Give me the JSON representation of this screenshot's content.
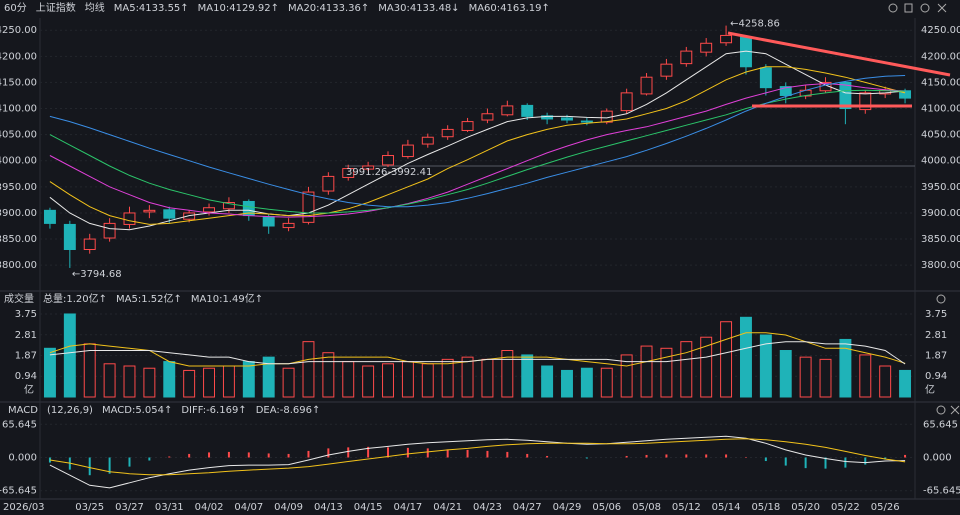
{
  "chart_data": [
    {
      "type": "candlestick",
      "period": "60分",
      "title": "上证指数",
      "ma_label": "均线",
      "up_color": "#ff4a4a",
      "down_color": "#1fb3b8",
      "ylim": [
        3762,
        4260
      ],
      "yticks": [
        {
          "value": 3800,
          "label": "3800.00"
        },
        {
          "value": 3850,
          "label": "3850.00"
        },
        {
          "value": 3900,
          "label": "3900.00"
        },
        {
          "value": 3950,
          "label": "3950.00"
        },
        {
          "value": 4000,
          "label": "4000.00"
        },
        {
          "value": 4050,
          "label": "4050.00"
        },
        {
          "value": 4100,
          "label": "4100.00"
        },
        {
          "value": 4150,
          "label": "4150.00"
        },
        {
          "value": 4200,
          "label": "4200.00"
        },
        {
          "value": 4250,
          "label": "4250.00"
        }
      ],
      "ohlc": {
        "open": [
          3905,
          3878,
          3830,
          3852,
          3878,
          3902,
          3906,
          3888,
          3902,
          3908,
          3922,
          3893,
          3872,
          3882,
          3942,
          3968,
          3984,
          3992,
          4008,
          4032,
          4046,
          4058,
          4078,
          4088,
          4106,
          4086,
          4082,
          4076,
          4074,
          4096,
          4128,
          4162,
          4186,
          4208,
          4226,
          4238,
          4178,
          4142,
          4124,
          4134,
          4150,
          4098,
          4128,
          4134
        ],
        "high": [
          3910,
          3885,
          3860,
          3890,
          3912,
          3915,
          3912,
          3905,
          3918,
          3930,
          3926,
          3898,
          3890,
          3950,
          3978,
          3992.41,
          3998,
          4018,
          4040,
          4052,
          4068,
          4082,
          4100,
          4115,
          4110,
          4092,
          4088,
          4082,
          4100,
          4138,
          4168,
          4195,
          4218,
          4235,
          4258.86,
          4240,
          4185,
          4150,
          4145,
          4160,
          4152,
          4135,
          4142,
          4138
        ],
        "low": [
          3870,
          3794.68,
          3822,
          3845,
          3870,
          3890,
          3880,
          3882,
          3895,
          3900,
          3885,
          3860,
          3865,
          3878,
          3935,
          3962,
          3980,
          3988,
          4004,
          4025,
          4040,
          4055,
          4072,
          4085,
          4078,
          4070,
          4072,
          4068,
          4070,
          4090,
          4125,
          4155,
          4180,
          4200,
          4220,
          4165,
          4125,
          4110,
          4118,
          4130,
          4070,
          4090,
          4120,
          4110
        ],
        "close": [
          3880,
          3830,
          3850,
          3880,
          3900,
          3905,
          3890,
          3900,
          3910,
          3920,
          3895,
          3875,
          3880,
          3940,
          3970,
          3985,
          3990,
          4010,
          4030,
          4045,
          4060,
          4075,
          4090,
          4105,
          4085,
          4080,
          4078,
          4075,
          4095,
          4130,
          4160,
          4185,
          4210,
          4225,
          4240,
          4180,
          4140,
          4125,
          4135,
          4150,
          4100,
          4130,
          4135,
          4120
        ]
      },
      "series": [
        {
          "name": "MA5:4133.55↑",
          "color": "#e8e8e8",
          "values": [
            3930,
            3900,
            3880,
            3870,
            3868,
            3875,
            3885,
            3895,
            3900,
            3905,
            3905,
            3898,
            3895,
            3900,
            3915,
            3935,
            3955,
            3975,
            3995,
            4012,
            4028,
            4045,
            4060,
            4075,
            4082,
            4085,
            4085,
            4083,
            4082,
            4090,
            4108,
            4130,
            4155,
            4180,
            4205,
            4210,
            4205,
            4185,
            4165,
            4145,
            4130,
            4128,
            4130,
            4133.55
          ]
        },
        {
          "name": "MA10:4129.92↑",
          "color": "#f2c21b",
          "values": [
            3960,
            3935,
            3912,
            3895,
            3885,
            3878,
            3880,
            3885,
            3890,
            3895,
            3900,
            3898,
            3895,
            3895,
            3900,
            3908,
            3920,
            3935,
            3950,
            3965,
            3985,
            4002,
            4020,
            4038,
            4050,
            4060,
            4068,
            4072,
            4075,
            4080,
            4090,
            4100,
            4115,
            4135,
            4155,
            4170,
            4180,
            4180,
            4175,
            4168,
            4160,
            4150,
            4140,
            4129.92
          ]
        },
        {
          "name": "MA20:4133.36↑",
          "color": "#e040d8",
          "values": [
            4010,
            3990,
            3970,
            3950,
            3935,
            3920,
            3910,
            3905,
            3900,
            3898,
            3895,
            3893,
            3892,
            3893,
            3895,
            3898,
            3903,
            3910,
            3918,
            3928,
            3940,
            3955,
            3970,
            3985,
            4000,
            4015,
            4028,
            4040,
            4050,
            4058,
            4065,
            4075,
            4085,
            4095,
            4108,
            4120,
            4130,
            4140,
            4145,
            4148,
            4145,
            4140,
            4136,
            4133.36
          ]
        },
        {
          "name": "MA30:4133.48↓",
          "color": "#2bc46a",
          "values": [
            4050,
            4030,
            4010,
            3990,
            3972,
            3957,
            3945,
            3935,
            3925,
            3918,
            3912,
            3907,
            3903,
            3900,
            3900,
            3902,
            3905,
            3910,
            3917,
            3925,
            3935,
            3945,
            3957,
            3970,
            3983,
            3995,
            4007,
            4018,
            4028,
            4038,
            4048,
            4058,
            4068,
            4078,
            4088,
            4100,
            4110,
            4118,
            4125,
            4130,
            4134,
            4135,
            4134,
            4133.48
          ]
        },
        {
          "name": "MA60:4163.19↑",
          "color": "#3a8ee6",
          "values": [
            4085,
            4075,
            4063,
            4050,
            4037,
            4024,
            4012,
            4000,
            3988,
            3977,
            3966,
            3955,
            3945,
            3935,
            3927,
            3920,
            3915,
            3912,
            3912,
            3915,
            3920,
            3928,
            3937,
            3947,
            3957,
            3968,
            3978,
            3988,
            3998,
            4008,
            4020,
            4033,
            4047,
            4062,
            4078,
            4095,
            4110,
            4123,
            4135,
            4145,
            4152,
            4158,
            4162,
            4163.19
          ]
        }
      ],
      "annotations": [
        "←4258.86",
        "←3794.68",
        "3991.26-3992.41"
      ]
    },
    {
      "type": "volume",
      "title": "成交量",
      "unit": "亿",
      "ylim": [
        0,
        4.02
      ],
      "yticks": [
        0.94,
        1.87,
        2.81,
        3.75
      ],
      "series": [
        {
          "name": "总量:1.20亿↑",
          "color": "#ff4a4a",
          "values": [
            2.2,
            3.75,
            2.4,
            1.5,
            1.4,
            1.3,
            1.6,
            1.2,
            1.3,
            1.4,
            1.6,
            1.8,
            1.3,
            2.5,
            2.0,
            1.6,
            1.4,
            1.5,
            1.6,
            1.5,
            1.7,
            1.8,
            1.7,
            2.1,
            1.9,
            1.4,
            1.2,
            1.3,
            1.3,
            1.9,
            2.3,
            2.2,
            2.5,
            2.7,
            3.4,
            3.6,
            2.8,
            2.1,
            1.8,
            1.7,
            2.6,
            1.9,
            1.4,
            1.2
          ]
        },
        {
          "name": "MA5:1.52亿↑",
          "color": "#f2c21b",
          "values": [
            2.0,
            2.3,
            2.4,
            2.3,
            2.2,
            2.1,
            1.6,
            1.4,
            1.4,
            1.4,
            1.4,
            1.5,
            1.5,
            1.7,
            1.8,
            1.8,
            1.8,
            1.8,
            1.6,
            1.5,
            1.5,
            1.6,
            1.7,
            1.8,
            1.8,
            1.8,
            1.7,
            1.6,
            1.5,
            1.4,
            1.6,
            1.8,
            2.0,
            2.3,
            2.6,
            2.9,
            2.9,
            2.8,
            2.5,
            2.2,
            2.2,
            2.0,
            1.8,
            1.52
          ]
        },
        {
          "name": "MA10:1.49亿↑",
          "color": "#e8e8e8",
          "values": [
            1.9,
            2.0,
            2.1,
            2.1,
            2.1,
            2.1,
            2.0,
            1.9,
            1.8,
            1.8,
            1.6,
            1.5,
            1.5,
            1.6,
            1.6,
            1.6,
            1.6,
            1.6,
            1.6,
            1.6,
            1.6,
            1.6,
            1.7,
            1.7,
            1.7,
            1.7,
            1.7,
            1.7,
            1.7,
            1.6,
            1.6,
            1.6,
            1.7,
            1.8,
            2.0,
            2.2,
            2.4,
            2.5,
            2.5,
            2.4,
            2.4,
            2.3,
            2.1,
            1.49
          ]
        }
      ]
    },
    {
      "type": "macd",
      "title": "MACD",
      "params": "(12,26,9)",
      "ylim": [
        -82,
        78
      ],
      "yticks": [
        {
          "value": 65.645,
          "label": "65.645"
        },
        {
          "value": 0,
          "label": "0.000"
        },
        {
          "value": -65.645,
          "label": "-65.645"
        }
      ],
      "categories": [
        "2026/03",
        null,
        "03/25",
        null,
        "03/27",
        null,
        "03/31",
        null,
        "04/02",
        null,
        "04/07",
        null,
        "04/09",
        null,
        "04/13",
        null,
        "04/15",
        null,
        "04/17",
        null,
        "04/21",
        null,
        "04/23",
        null,
        "04/27",
        null,
        "04/29",
        null,
        "05/06",
        null,
        "05/08",
        null,
        "05/12",
        null,
        "05/14",
        null,
        "05/18",
        null,
        "05/20",
        null,
        "05/22",
        null,
        "05/26",
        null
      ],
      "series": [
        {
          "name": "MACD:5.054↑",
          "color": "#ff4a4a",
          "values": [
            -10,
            -24,
            -35,
            -32,
            -18,
            -6,
            2,
            7,
            10,
            11,
            10,
            8,
            7,
            13,
            18,
            20,
            21,
            20,
            19,
            18,
            16,
            15,
            13,
            11,
            7,
            3,
            0,
            -2,
            0,
            3,
            5,
            6,
            6,
            6,
            6,
            1,
            -7,
            -16,
            -21,
            -22,
            -20,
            -14,
            -4,
            5.054
          ]
        },
        {
          "name": "DIFF:-6.169↑",
          "color": "#e8e8e8",
          "values": [
            -15,
            -35,
            -55,
            -60,
            -50,
            -40,
            -32,
            -25,
            -20,
            -16,
            -15,
            -15,
            -14,
            -5,
            5,
            12,
            18,
            22,
            26,
            29,
            31,
            33,
            35,
            36,
            34,
            31,
            28,
            26,
            27,
            30,
            33,
            36,
            38,
            40,
            42,
            38,
            28,
            15,
            5,
            -2,
            -8,
            -10,
            -7,
            -6.169
          ]
        },
        {
          "name": "DEA:-8.696↑",
          "color": "#f2c21b",
          "values": [
            -5,
            -11,
            -20,
            -28,
            -32,
            -34,
            -34,
            -32,
            -30,
            -27,
            -25,
            -23,
            -21,
            -18,
            -13,
            -8,
            -3,
            2,
            7,
            11,
            15,
            18,
            22,
            25,
            27,
            28,
            28,
            28,
            27,
            27,
            28,
            30,
            32,
            34,
            36,
            37,
            35,
            31,
            26,
            20,
            12,
            4,
            -3,
            -8.696
          ]
        }
      ]
    }
  ]
}
